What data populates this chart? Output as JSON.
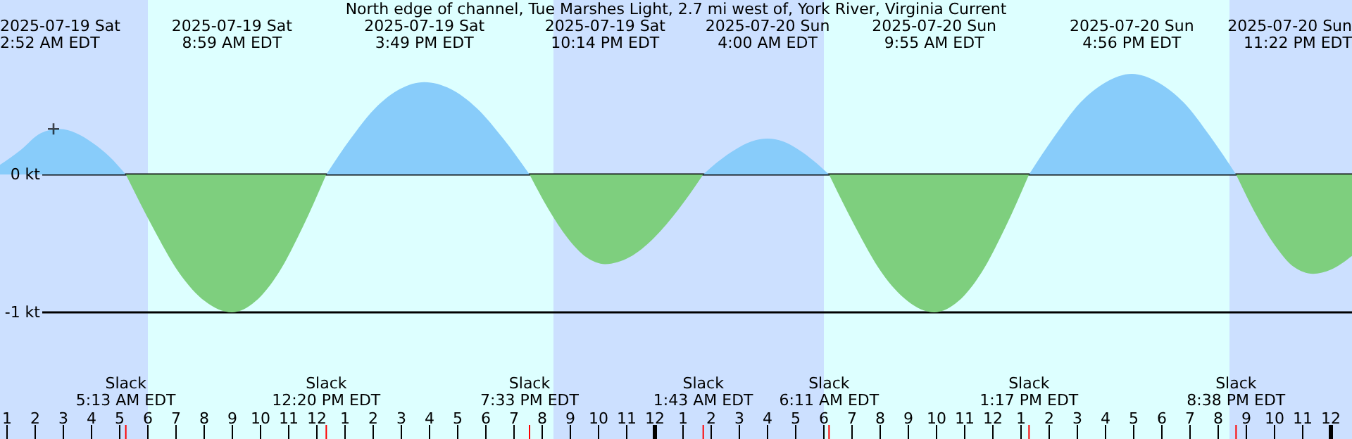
{
  "chart_data": {
    "type": "area",
    "title": "North edge of channel, Tue Marshes Light, 2.7 mi west of, York River, Virginia Current",
    "x": [
      "2025-07-19T00:45",
      "2025-07-19T01:30",
      "2025-07-19T02:12",
      "2025-07-19T02:52",
      "2025-07-19T03:27",
      "2025-07-19T04:02",
      "2025-07-19T04:38",
      "2025-07-19T05:13",
      "2025-07-19T06:10",
      "2025-07-19T07:06",
      "2025-07-19T08:02",
      "2025-07-19T08:59",
      "2025-07-19T09:49",
      "2025-07-19T10:39",
      "2025-07-19T11:30",
      "2025-07-19T12:20",
      "2025-07-19T13:12",
      "2025-07-19T14:04",
      "2025-07-19T14:57",
      "2025-07-19T15:49",
      "2025-07-19T16:45",
      "2025-07-19T17:41",
      "2025-07-19T18:37",
      "2025-07-19T19:33",
      "2025-07-19T20:13",
      "2025-07-19T20:54",
      "2025-07-19T21:34",
      "2025-07-19T22:14",
      "2025-07-19T23:06",
      "2025-07-19T23:58",
      "2025-07-20T00:51",
      "2025-07-20T01:43",
      "2025-07-20T02:17",
      "2025-07-20T02:51",
      "2025-07-20T03:26",
      "2025-07-20T04:00",
      "2025-07-20T04:33",
      "2025-07-20T05:06",
      "2025-07-20T05:38",
      "2025-07-20T06:11",
      "2025-07-20T07:07",
      "2025-07-20T08:03",
      "2025-07-20T08:59",
      "2025-07-20T09:55",
      "2025-07-20T10:46",
      "2025-07-20T11:36",
      "2025-07-20T12:27",
      "2025-07-20T13:17",
      "2025-07-20T14:12",
      "2025-07-20T15:06",
      "2025-07-20T16:01",
      "2025-07-20T16:56",
      "2025-07-20T17:51",
      "2025-07-20T18:47",
      "2025-07-20T19:42",
      "2025-07-20T20:38",
      "2025-07-20T21:19",
      "2025-07-20T22:00",
      "2025-07-20T22:41",
      "2025-07-20T23:22",
      "2025-07-21T00:00",
      "2025-07-21T00:45"
    ],
    "series": [
      {
        "color": "#88ccfa",
        "values": [
          0.07,
          0.18,
          0.3,
          0.33,
          0.3,
          0.23,
          0.13,
          0,
          null,
          null,
          null,
          null,
          null,
          null,
          null,
          0,
          0.26,
          0.48,
          0.62,
          0.67,
          0.62,
          0.48,
          0.26,
          0,
          null,
          null,
          null,
          null,
          null,
          null,
          null,
          0,
          0.1,
          0.18,
          0.24,
          0.26,
          0.24,
          0.18,
          0.1,
          0,
          null,
          null,
          null,
          null,
          null,
          null,
          null,
          0,
          0.28,
          0.52,
          0.67,
          0.73,
          0.67,
          0.52,
          0.28,
          0,
          null,
          null,
          null,
          null,
          null,
          null
        ]
      },
      {
        "color": "#7ecf7e",
        "values": [
          null,
          null,
          null,
          null,
          null,
          null,
          null,
          0,
          -0.38,
          -0.71,
          -0.92,
          -1.0,
          -0.92,
          -0.71,
          -0.38,
          0,
          null,
          null,
          null,
          null,
          null,
          null,
          null,
          0,
          -0.25,
          -0.46,
          -0.6,
          -0.65,
          -0.6,
          -0.46,
          -0.25,
          0,
          null,
          null,
          null,
          null,
          null,
          null,
          null,
          0,
          -0.38,
          -0.71,
          -0.92,
          -1.0,
          -0.92,
          -0.71,
          -0.38,
          0,
          null,
          null,
          null,
          null,
          null,
          null,
          null,
          0,
          -0.28,
          -0.51,
          -0.67,
          -0.72,
          -0.69,
          -0.59
        ]
      },
      {
        "type": "scatter",
        "color": "#000000",
        "marker": "cross",
        "x": [
          "2025-07-19T02:39"
        ],
        "values": [
          0.33
        ]
      }
    ],
    "xlim": [
      "2025-07-19T00:45",
      "2025-07-21T00:45"
    ],
    "xticks": [
      {
        "value": "2025-07-19T01:00",
        "label": "1"
      },
      {
        "value": "2025-07-19T02:00",
        "label": "2"
      },
      {
        "value": "2025-07-19T03:00",
        "label": "3"
      },
      {
        "value": "2025-07-19T04:00",
        "label": "4"
      },
      {
        "value": "2025-07-19T05:00",
        "label": "5"
      },
      {
        "value": "2025-07-19T06:00",
        "label": "6"
      },
      {
        "value": "2025-07-19T07:00",
        "label": "7"
      },
      {
        "value": "2025-07-19T08:00",
        "label": "8"
      },
      {
        "value": "2025-07-19T09:00",
        "label": "9"
      },
      {
        "value": "2025-07-19T10:00",
        "label": "10"
      },
      {
        "value": "2025-07-19T11:00",
        "label": "11"
      },
      {
        "value": "2025-07-19T12:00",
        "label": "12"
      },
      {
        "value": "2025-07-19T13:00",
        "label": "1"
      },
      {
        "value": "2025-07-19T14:00",
        "label": "2"
      },
      {
        "value": "2025-07-19T15:00",
        "label": "3"
      },
      {
        "value": "2025-07-19T16:00",
        "label": "4"
      },
      {
        "value": "2025-07-19T17:00",
        "label": "5"
      },
      {
        "value": "2025-07-19T18:00",
        "label": "6"
      },
      {
        "value": "2025-07-19T19:00",
        "label": "7"
      },
      {
        "value": "2025-07-19T20:00",
        "label": "8"
      },
      {
        "value": "2025-07-19T21:00",
        "label": "9"
      },
      {
        "value": "2025-07-19T22:00",
        "label": "10"
      },
      {
        "value": "2025-07-19T23:00",
        "label": "11"
      },
      {
        "value": "2025-07-20T00:00",
        "label": "12"
      },
      {
        "value": "2025-07-20T01:00",
        "label": "1"
      },
      {
        "value": "2025-07-20T02:00",
        "label": "2"
      },
      {
        "value": "2025-07-20T03:00",
        "label": "3"
      },
      {
        "value": "2025-07-20T04:00",
        "label": "4"
      },
      {
        "value": "2025-07-20T05:00",
        "label": "5"
      },
      {
        "value": "2025-07-20T06:00",
        "label": "6"
      },
      {
        "value": "2025-07-20T07:00",
        "label": "7"
      },
      {
        "value": "2025-07-20T08:00",
        "label": "8"
      },
      {
        "value": "2025-07-20T09:00",
        "label": "9"
      },
      {
        "value": "2025-07-20T10:00",
        "label": "10"
      },
      {
        "value": "2025-07-20T11:00",
        "label": "11"
      },
      {
        "value": "2025-07-20T12:00",
        "label": "12"
      },
      {
        "value": "2025-07-20T13:00",
        "label": "1"
      },
      {
        "value": "2025-07-20T14:00",
        "label": "2"
      },
      {
        "value": "2025-07-20T15:00",
        "label": "3"
      },
      {
        "value": "2025-07-20T16:00",
        "label": "4"
      },
      {
        "value": "2025-07-20T17:00",
        "label": "5"
      },
      {
        "value": "2025-07-20T18:00",
        "label": "6"
      },
      {
        "value": "2025-07-20T19:00",
        "label": "7"
      },
      {
        "value": "2025-07-20T20:00",
        "label": "8"
      },
      {
        "value": "2025-07-20T21:00",
        "label": "9"
      },
      {
        "value": "2025-07-20T22:00",
        "label": "10"
      },
      {
        "value": "2025-07-20T23:00",
        "label": "11"
      },
      {
        "value": "2025-07-21T00:00",
        "label": "12"
      }
    ],
    "ylim": [
      -1.918,
      1.265
    ],
    "yticks": [
      {
        "value": 0,
        "label": "0 kt"
      },
      {
        "value": -1,
        "label": "-1 kt"
      }
    ],
    "grid": "y",
    "bands": [
      {
        "axis": "x",
        "from": "2025-07-19T00:45",
        "to": "2025-07-19T06:00",
        "color": "#cce0ff"
      },
      {
        "axis": "x",
        "from": "2025-07-19T06:00",
        "to": "2025-07-19T20:24",
        "color": "#ddffff"
      },
      {
        "axis": "x",
        "from": "2025-07-19T20:24",
        "to": "2025-07-20T06:00",
        "color": "#cce0ff"
      },
      {
        "axis": "x",
        "from": "2025-07-20T06:00",
        "to": "2025-07-20T20:24",
        "color": "#ddffff"
      },
      {
        "axis": "x",
        "from": "2025-07-20T20:24",
        "to": "2025-07-21T00:45",
        "color": "#cce0ff"
      }
    ],
    "annotations": [
      "2025-07-19 Sat\n2:52 AM EDT",
      "2025-07-19 Sat\n8:59 AM EDT",
      "2025-07-19 Sat\n3:49 PM EDT",
      "2025-07-19 Sat\n10:14 PM EDT",
      "2025-07-20 Sun\n4:00 AM EDT",
      "2025-07-20 Sun\n9:55 AM EDT",
      "2025-07-20 Sun\n4:56 PM EDT",
      "2025-07-20 Sun\n11:22 PM EDT",
      "Slack\n5:13 AM EDT",
      "Slack\n12:20 PM EDT",
      "Slack\n7:33 PM EDT",
      "Slack\n1:43 AM EDT",
      "Slack\n6:11 AM EDT",
      "Slack\n1:17 PM EDT",
      "Slack\n8:38 PM EDT"
    ]
  }
}
